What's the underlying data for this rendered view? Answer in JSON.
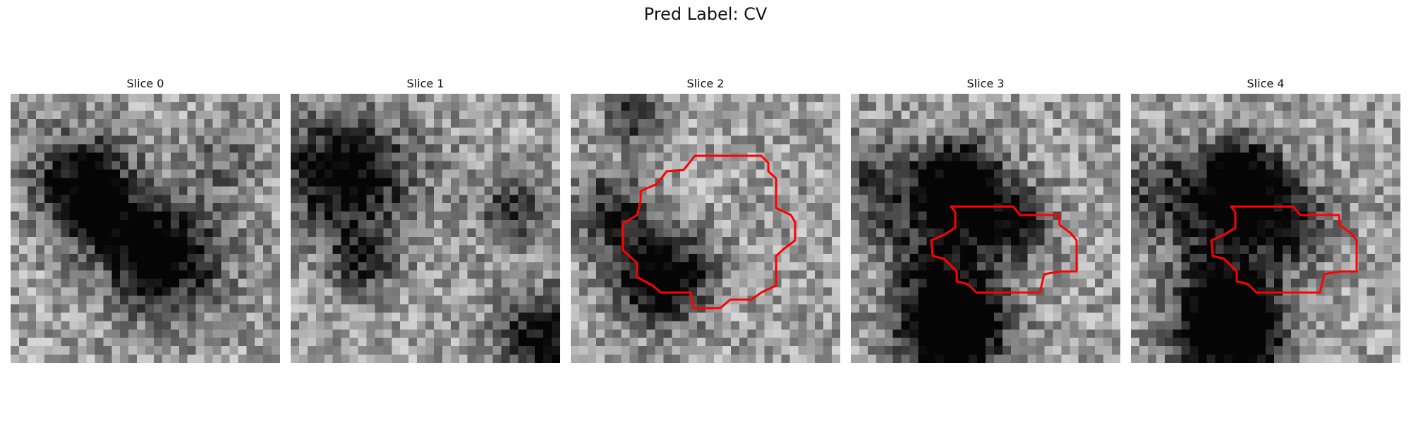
{
  "title": "Pred Label: CV",
  "panels": [
    {
      "label": "Slice 0",
      "has_contour": false
    },
    {
      "label": "Slice 1",
      "has_contour": false
    },
    {
      "label": "Slice 2",
      "has_contour": true
    },
    {
      "label": "Slice 3",
      "has_contour": true
    },
    {
      "label": "Slice 4",
      "has_contour": true
    }
  ],
  "colors": {
    "contour": "#ff0000"
  }
}
